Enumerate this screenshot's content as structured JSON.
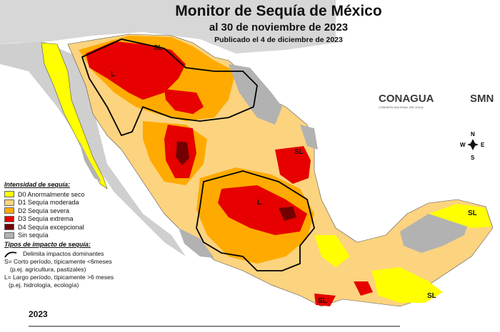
{
  "title": "Monitor de Sequía de México",
  "subtitle": "al 30 de noviembre de 2023",
  "published": "Publicado el 4 de diciembre de 2023",
  "year": "2023",
  "logos": {
    "conagua": "CONAGUA",
    "conagua_sub": "COMISIÓN NACIONAL DEL AGUA",
    "smn": "SMN"
  },
  "intensity_legend": {
    "title": "Intensidad de sequía:",
    "items": [
      {
        "label": "D0 Anormalmente seco",
        "color": "#ffff00"
      },
      {
        "label": "D1 Sequía moderada",
        "color": "#fcd37f"
      },
      {
        "label": "D2 Sequía severa",
        "color": "#ffaa00"
      },
      {
        "label": "D3 Sequía extrema",
        "color": "#e60000"
      },
      {
        "label": "D4 Sequía excepcional",
        "color": "#730000"
      },
      {
        "label": "Sin sequía",
        "color": "#b2b2b2"
      }
    ]
  },
  "impact_legend": {
    "title": "Tipos de impacto de sequía:",
    "line_label": "Delimita impactos dominantes",
    "s_line1": "S= Corto período, típicamente <6meses",
    "s_line2": "(p.ej. agricultura, pastizales)",
    "l_line1": "L= Largo período, típicamente >6 meses",
    "l_line2": "(p.ej. hidrología, ecología)"
  },
  "compass": {
    "n": "N",
    "s": "S",
    "e": "E",
    "w": "W"
  },
  "map_labels": {
    "sl": "SL",
    "l": "L"
  }
}
